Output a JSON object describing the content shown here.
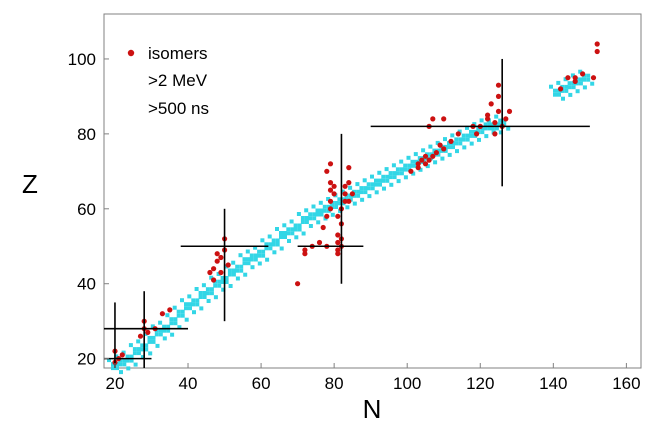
{
  "chart_data": {
    "type": "scatter",
    "xlabel": "N",
    "ylabel": "Z",
    "xlim": [
      17,
      164
    ],
    "ylim": [
      17.5,
      112
    ],
    "xticks": [
      20,
      40,
      60,
      80,
      100,
      120,
      140,
      160
    ],
    "yticks": [
      20,
      40,
      60,
      80,
      100
    ],
    "grid": false,
    "legend": {
      "placement": "top-left",
      "marker_color": "#cc1111",
      "lines": [
        "isomers",
        ">2 MeV",
        ">500 ns"
      ]
    },
    "colors": {
      "stable": "#33d6e6",
      "isomers": "#cc1111",
      "magic": "#000000"
    },
    "magic_lines": [
      {
        "orientation": "h",
        "at": 20,
        "from": 17,
        "to": 30
      },
      {
        "orientation": "v",
        "at": 20,
        "from": 17.5,
        "to": 35
      },
      {
        "orientation": "h",
        "at": 28,
        "from": 17,
        "to": 40
      },
      {
        "orientation": "v",
        "at": 28,
        "from": 17.5,
        "to": 38
      },
      {
        "orientation": "h",
        "at": 50,
        "from": 38,
        "to": 62
      },
      {
        "orientation": "v",
        "at": 50,
        "from": 30,
        "to": 60
      },
      {
        "orientation": "h",
        "at": 50,
        "from": 70,
        "to": 88
      },
      {
        "orientation": "v",
        "at": 82,
        "from": 40,
        "to": 80
      },
      {
        "orientation": "h",
        "at": 82,
        "from": 90,
        "to": 150
      },
      {
        "orientation": "v",
        "at": 126,
        "from": 66,
        "to": 100
      }
    ],
    "stable_band": [
      [
        20,
        18
      ],
      [
        22,
        19
      ],
      [
        24,
        20
      ],
      [
        26,
        22
      ],
      [
        28,
        23
      ],
      [
        30,
        25
      ],
      [
        32,
        27
      ],
      [
        34,
        28
      ],
      [
        36,
        30
      ],
      [
        38,
        32
      ],
      [
        40,
        34
      ],
      [
        42,
        35
      ],
      [
        44,
        37
      ],
      [
        46,
        38
      ],
      [
        48,
        40
      ],
      [
        50,
        41
      ],
      [
        52,
        43
      ],
      [
        54,
        44
      ],
      [
        56,
        46
      ],
      [
        58,
        47
      ],
      [
        60,
        48
      ],
      [
        62,
        50
      ],
      [
        64,
        51
      ],
      [
        66,
        53
      ],
      [
        68,
        54
      ],
      [
        70,
        55
      ],
      [
        72,
        57
      ],
      [
        74,
        58
      ],
      [
        76,
        59
      ],
      [
        78,
        60
      ],
      [
        80,
        61
      ],
      [
        82,
        62
      ],
      [
        84,
        63
      ],
      [
        86,
        64
      ],
      [
        88,
        65
      ],
      [
        90,
        66
      ],
      [
        92,
        67
      ],
      [
        94,
        68
      ],
      [
        96,
        69
      ],
      [
        98,
        70
      ],
      [
        100,
        71
      ],
      [
        102,
        72
      ],
      [
        104,
        73
      ],
      [
        106,
        74
      ],
      [
        108,
        75
      ],
      [
        110,
        76
      ],
      [
        112,
        77
      ],
      [
        114,
        78
      ],
      [
        116,
        79
      ],
      [
        118,
        80
      ],
      [
        120,
        81
      ],
      [
        122,
        82
      ],
      [
        124,
        82
      ],
      [
        126,
        83
      ],
      [
        141,
        91
      ],
      [
        143,
        92
      ],
      [
        145,
        93
      ],
      [
        147,
        94
      ],
      [
        149,
        95
      ]
    ],
    "isomers": [
      [
        20,
        19
      ],
      [
        21,
        20
      ],
      [
        20,
        22
      ],
      [
        22,
        21
      ],
      [
        27,
        26
      ],
      [
        28,
        28
      ],
      [
        29,
        27
      ],
      [
        28,
        30
      ],
      [
        33,
        32
      ],
      [
        35,
        33
      ],
      [
        31,
        28
      ],
      [
        47,
        41
      ],
      [
        47,
        44
      ],
      [
        48,
        46
      ],
      [
        48,
        48
      ],
      [
        49,
        47
      ],
      [
        50,
        49
      ],
      [
        50,
        52
      ],
      [
        49,
        43
      ],
      [
        51,
        45
      ],
      [
        46,
        43
      ],
      [
        70,
        40
      ],
      [
        72,
        48
      ],
      [
        74,
        50
      ],
      [
        76,
        51
      ],
      [
        78,
        50
      ],
      [
        72,
        49
      ],
      [
        77,
        55
      ],
      [
        78,
        58
      ],
      [
        79,
        60
      ],
      [
        79,
        62
      ],
      [
        79,
        65
      ],
      [
        79,
        67
      ],
      [
        78,
        70
      ],
      [
        79,
        72
      ],
      [
        80,
        64
      ],
      [
        80,
        66
      ],
      [
        81,
        48
      ],
      [
        81,
        49
      ],
      [
        81,
        51
      ],
      [
        82,
        50
      ],
      [
        82,
        52
      ],
      [
        81,
        53
      ],
      [
        82,
        56
      ],
      [
        81,
        58
      ],
      [
        82,
        60
      ],
      [
        83,
        62
      ],
      [
        83,
        64
      ],
      [
        83,
        66
      ],
      [
        84,
        62
      ],
      [
        84,
        67
      ],
      [
        84,
        71
      ],
      [
        85,
        64
      ],
      [
        101,
        70
      ],
      [
        103,
        72
      ],
      [
        104,
        73
      ],
      [
        105,
        74
      ],
      [
        106,
        73
      ],
      [
        107,
        74
      ],
      [
        105,
        72
      ],
      [
        103,
        71
      ],
      [
        108,
        75
      ],
      [
        109,
        77
      ],
      [
        110,
        76
      ],
      [
        112,
        78
      ],
      [
        114,
        80
      ],
      [
        106,
        82
      ],
      [
        107,
        84
      ],
      [
        110,
        84
      ],
      [
        118,
        82
      ],
      [
        120,
        82
      ],
      [
        122,
        84
      ],
      [
        124,
        83
      ],
      [
        125,
        86
      ],
      [
        126,
        82
      ],
      [
        127,
        84
      ],
      [
        128,
        86
      ],
      [
        123,
        88
      ],
      [
        125,
        90
      ],
      [
        125,
        93
      ],
      [
        122,
        85
      ],
      [
        124,
        80
      ],
      [
        119,
        80
      ],
      [
        142,
        92
      ],
      [
        144,
        95
      ],
      [
        146,
        95
      ],
      [
        148,
        96
      ],
      [
        151,
        95
      ],
      [
        152,
        104
      ],
      [
        152,
        102
      ],
      [
        146,
        94
      ]
    ]
  }
}
